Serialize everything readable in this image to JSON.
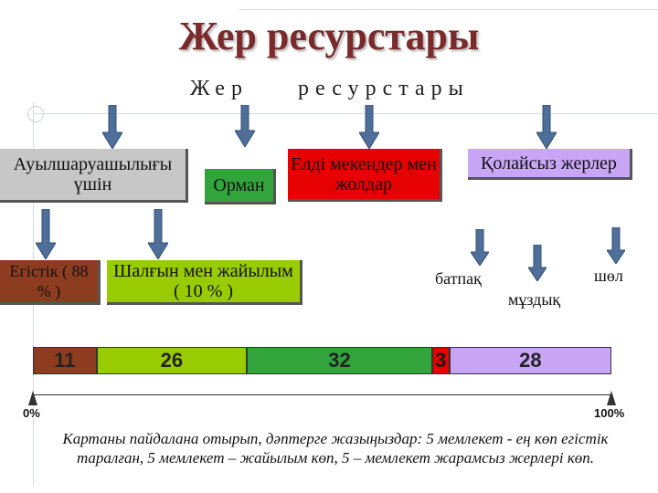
{
  "title": "Жер ресурстары",
  "subtitle_left": "Жер",
  "subtitle_right": "ресурстары",
  "categories": {
    "agriculture": "Ауылшаруашылығы үшін",
    "forest": "Орман",
    "settlements": "Елді мекендер мен жолдар",
    "unfavorable": "Қолайсыз жерлер"
  },
  "subcategories": {
    "arable": "Егістік ( 88 % )",
    "pasture": "Шалғын мен жайылым ( 10 % )"
  },
  "unfavorable_types": {
    "swamp": "батпақ",
    "ice": "мұздық",
    "desert": "шөл"
  },
  "colors": {
    "agriculture": "#c7c7c7",
    "forest": "#31a53c",
    "settlements": "#e60000",
    "unfavorable": "#c9a6f5",
    "arable": "#8e3c1f",
    "pasture": "#99cc00",
    "arrow": "#4f6f99"
  },
  "chart_data": {
    "type": "bar",
    "categories": [
      "11",
      "26",
      "32",
      "3",
      "28"
    ],
    "values": [
      11,
      26,
      32,
      3,
      28
    ],
    "colors": [
      "#8e3c1f",
      "#99cc00",
      "#31a53c",
      "#e60000",
      "#c9a6f5"
    ],
    "axis_min_label": "0%",
    "axis_max_label": "100%"
  },
  "note": "Картаны пайдалана отырып, дәптерге жазыңыздар: 5 мемлекет - ең көп егістік таралған, 5 мемлекет – жайылым көп, 5 – мемлекет жарамсыз жерлері көп."
}
